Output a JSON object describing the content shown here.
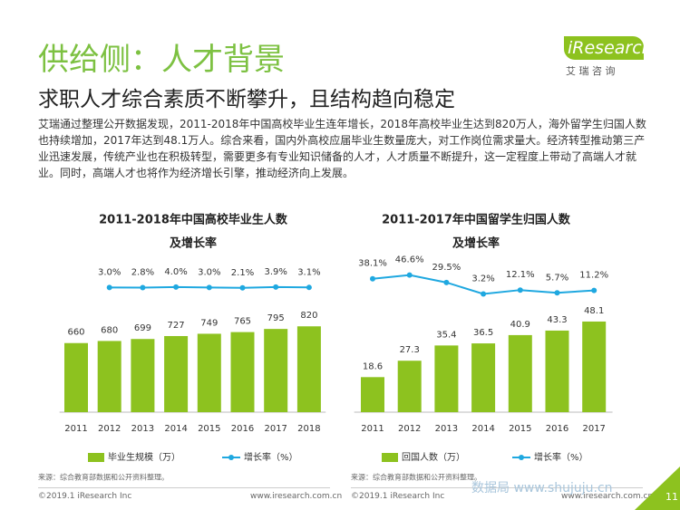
{
  "header": {
    "title": "供给侧：人才背景",
    "subtitle": "求职人才综合素质不断攀升，且结构趋向稳定"
  },
  "logo": {
    "brand": "iResearch",
    "tagline": "艾 瑞 咨 询"
  },
  "paragraph": "艾瑞通过整理公开数据发现，2011-2018年中国高校毕业生连年增长，2018年高校毕业生达到820万人，海外留学生归国人数也持续增加，2017年达到48.1万人。综合来看，国内外高校应届毕业生数量庞大，对工作岗位需求量大。经济转型推动第三产业迅速发展，传统产业也在积极转型，需要更多有专业知识储备的人才，人才质量不断提升，这一定程度上带动了高端人才就业。同时，高端人才也将作为经济增长引擎，推动经济向上发展。",
  "chart_data": [
    {
      "type": "bar",
      "title": [
        "2011-2018年中国高校毕业生人数",
        "及增长率"
      ],
      "categories": [
        "2011",
        "2012",
        "2013",
        "2014",
        "2015",
        "2016",
        "2017",
        "2018"
      ],
      "series": [
        {
          "name": "毕业生规模（万）",
          "color": "#8dc21f",
          "values": [
            660,
            680,
            699,
            727,
            749,
            765,
            795,
            820
          ]
        },
        {
          "name": "增长率（%）",
          "color": "#1fa8e0",
          "axis": "y2",
          "values": [
            null,
            3.0,
            2.8,
            4.0,
            3.0,
            2.1,
            3.9,
            3.1
          ],
          "value_labels": [
            null,
            "3.0%",
            "2.8%",
            "4.0%",
            "3.0%",
            "2.1%",
            "3.9%",
            "3.1%"
          ]
        }
      ],
      "ylim": [
        0,
        900
      ],
      "y2lim": [
        -15,
        35
      ],
      "source": "来源：综合教育部数据和公开资料整理。"
    },
    {
      "type": "bar",
      "title": [
        "2011-2017年中国留学生归国人数",
        "及增长率"
      ],
      "categories": [
        "2011",
        "2012",
        "2013",
        "2014",
        "2015",
        "2016",
        "2017"
      ],
      "series": [
        {
          "name": "回国人数（万）",
          "color": "#8dc21f",
          "values": [
            18.6,
            27.3,
            35.4,
            36.5,
            40.9,
            43.3,
            48.1
          ]
        },
        {
          "name": "增长率（%）",
          "color": "#1fa8e0",
          "axis": "y2",
          "values": [
            38.1,
            46.6,
            29.5,
            3.2,
            12.1,
            5.7,
            11.2
          ],
          "value_labels": [
            "38.1%",
            "46.6%",
            "29.5%",
            "3.2%",
            "12.1%",
            "5.7%",
            "11.2%"
          ]
        }
      ],
      "ylim": [
        0,
        50
      ],
      "y2lim": [
        0,
        50
      ],
      "source": "来源：综合教育部数据和公开资料整理。"
    }
  ],
  "footer": {
    "copyright": [
      "©2019.1 iResearch Inc",
      "©2019.1 iResearch Inc"
    ],
    "url": [
      "www.iresearch.com.cn",
      "www.iresearch.com.cn"
    ],
    "page": "11",
    "watermark": "数据局 www.shujuju.cn"
  }
}
